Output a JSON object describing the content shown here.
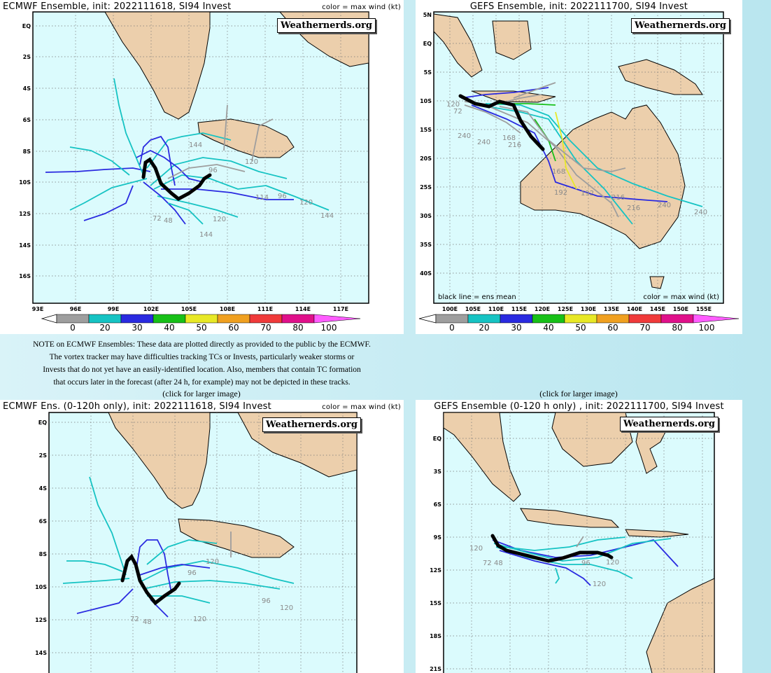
{
  "panels": {
    "ecmwf": {
      "title": "ECMWF Ensemble, init: 2022111618, SI94 Invest",
      "color_note": "color = max wind (kt)",
      "badge": "Weathernerds.org",
      "lat_labels": [
        "EQ",
        "2S",
        "4S",
        "6S",
        "8S",
        "10S",
        "12S",
        "14S",
        "16S"
      ],
      "lon_labels": [
        "93E",
        "96E",
        "99E",
        "102E",
        "105E",
        "108E",
        "111E",
        "114E",
        "117E"
      ],
      "hour_labels": [
        "144",
        "96",
        "120",
        "114",
        "96",
        "120",
        "144",
        "120",
        "144",
        "72",
        "48"
      ]
    },
    "gefs": {
      "title": "GEFS Ensemble, init: 2022111700, SI94 Invest",
      "badge": "Weathernerds.org",
      "lat_labels": [
        "5N",
        "EQ",
        "5S",
        "10S",
        "15S",
        "20S",
        "25S",
        "30S",
        "35S",
        "40S"
      ],
      "lon_labels": [
        "100E",
        "105E",
        "110E",
        "115E",
        "120E",
        "125E",
        "130E",
        "135E",
        "140E",
        "145E",
        "150E",
        "155E"
      ],
      "ens_mean_note": "black line = ens mean",
      "color_note": "color = max wind (kt)",
      "hour_labels": [
        "120",
        "72",
        "240",
        "240",
        "168",
        "216",
        "168",
        "192",
        "192",
        "216",
        "216",
        "240",
        "240"
      ]
    },
    "ecmwf120": {
      "title": "ECMWF Ens. (0-120h only), init: 2022111618, SI94 Invest",
      "color_note": "color = max wind (kt)",
      "badge": "Weathernerds.org",
      "lat_labels": [
        "EQ",
        "2S",
        "4S",
        "6S",
        "8S",
        "10S",
        "12S",
        "14S"
      ],
      "hour_labels": [
        "120",
        "96",
        "96",
        "120",
        "120",
        "72",
        "48"
      ]
    },
    "gefs120": {
      "title": "GEFS Ensemble (0-120 h only) , init: 2022111700, SI94 Invest",
      "badge": "Weathernerds.org",
      "lat_labels": [
        "EQ",
        "3S",
        "6S",
        "9S",
        "12S",
        "15S",
        "18S",
        "21S"
      ],
      "hour_labels": [
        "120",
        "72",
        "48",
        "96",
        "120",
        "120"
      ]
    }
  },
  "colorbar": {
    "ticks": [
      "0",
      "20",
      "30",
      "40",
      "50",
      "60",
      "70",
      "80",
      "100"
    ],
    "colors": [
      "#9e9e9e",
      "#16c3c3",
      "#2a2ae0",
      "#18c018",
      "#e8e826",
      "#f0a020",
      "#f03a3a",
      "#e0108a",
      "#ff5cff"
    ]
  },
  "note_lines": [
    "NOTE on ECMWF Ensembles: These data are plotted directly as provided to the public by the ECMWF.",
    "The vortex tracker may have difficulties tracking TCs or Invests, particularly weaker storms or",
    "Invests that do not yet have an easily-identified location. Also, members that contain TC formation",
    "that occurs later in the forecast (after 24 h, for example) may not be depicted in these tracks."
  ],
  "click_left": "(click for larger image)",
  "click_right": "(click for larger image)",
  "colors": {
    "ocean": "#dbfbfd",
    "land": "#eccfac",
    "grid": "#777777"
  }
}
